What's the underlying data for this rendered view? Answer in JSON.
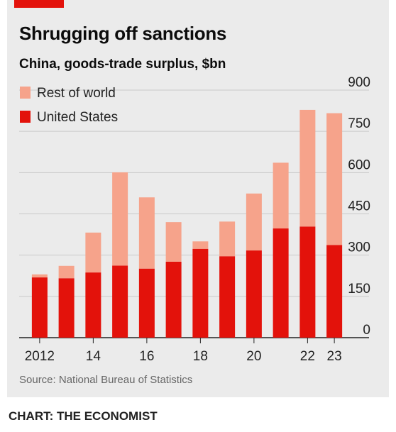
{
  "header": {
    "title": "Shrugging off sanctions",
    "subtitle": "China, goods-trade surplus, $bn"
  },
  "source": "Source: National Bureau of Statistics",
  "footer": "CHART: THE ECONOMIST",
  "colors": {
    "accent": "#e3120b",
    "rest_of_world": "#f6a38b",
    "united_states": "#e3120b",
    "background": "#ebebeb"
  },
  "chart_data": {
    "type": "bar",
    "stacked": true,
    "categories": [
      "2012",
      "2013",
      "2014",
      "2015",
      "2016",
      "2017",
      "2018",
      "2019",
      "2020",
      "2021",
      "2022",
      "2023"
    ],
    "x_tick_labels": [
      "2012",
      "",
      "14",
      "",
      "16",
      "",
      "18",
      "",
      "20",
      "",
      "22",
      "23"
    ],
    "series": [
      {
        "name": "United States",
        "values": [
          219,
          216,
          237,
          262,
          251,
          276,
          323,
          296,
          317,
          397,
          404,
          337
        ]
      },
      {
        "name": "Rest of world",
        "values": [
          11,
          45,
          145,
          339,
          259,
          144,
          27,
          126,
          207,
          239,
          424,
          479
        ]
      }
    ],
    "ylabel": "",
    "ylim": [
      0,
      900
    ],
    "y_ticks": [
      0,
      150,
      300,
      450,
      600,
      750,
      900
    ],
    "y_axis_side": "right",
    "grid": true,
    "legend": [
      "Rest of world",
      "United States"
    ],
    "legend_position": "top-left"
  }
}
